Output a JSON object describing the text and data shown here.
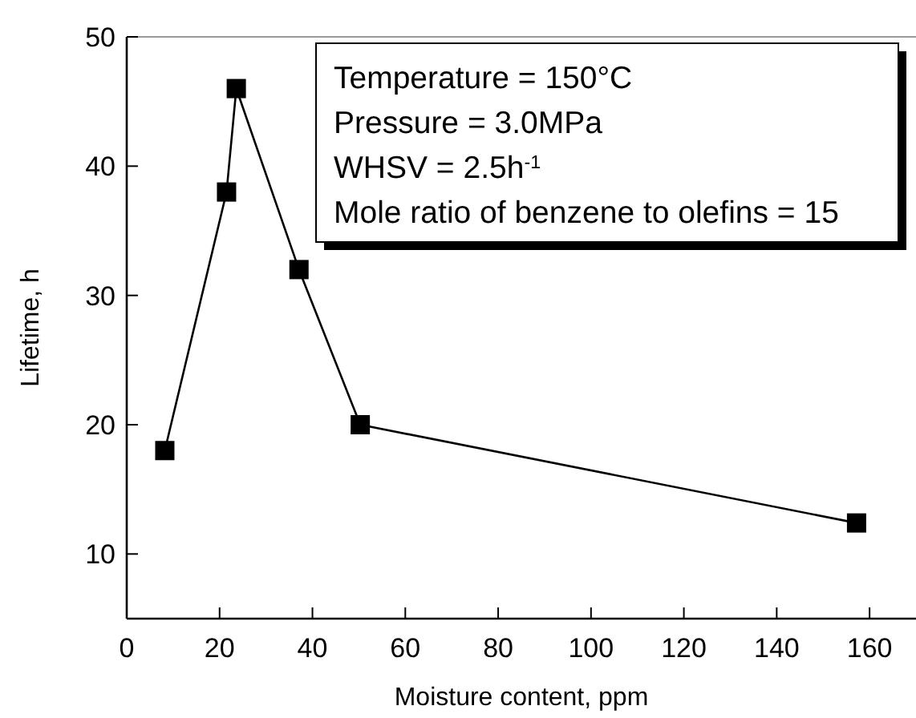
{
  "chart_data": {
    "type": "line",
    "xlabel": "Moisture content, ppm",
    "ylabel": "Lifetime, h",
    "x": [
      8.2,
      21.5,
      23.6,
      37.1,
      50.3,
      157.2
    ],
    "series": [
      {
        "color": "#000000",
        "values": [
          18,
          38,
          46,
          32,
          20,
          12.4
        ]
      }
    ],
    "xlim": [
      0,
      170
    ],
    "xticks": [
      0,
      20,
      40,
      60,
      80,
      100,
      120,
      140,
      160
    ],
    "ylim": [
      5,
      50
    ],
    "yticks": [
      10,
      20,
      30,
      40,
      50
    ],
    "marker": "square",
    "line_style": "solid",
    "grid": false,
    "annotations": [
      "Temperature = 150°C",
      "Pressure = 3.0MPa",
      "WHSV = 2.5h$^{-1}$",
      "Mole ratio of benzene to olefins = 15"
    ]
  }
}
